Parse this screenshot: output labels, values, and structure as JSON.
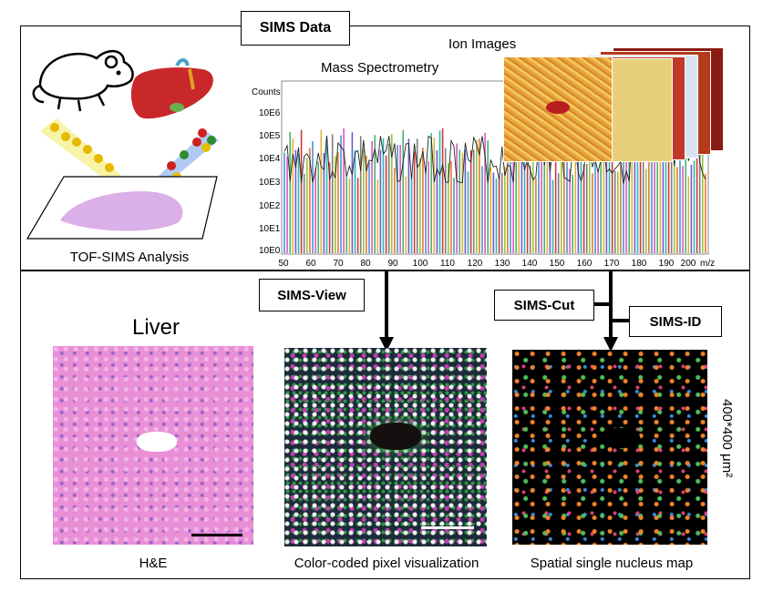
{
  "sections": {
    "top_label": "SIMS Data",
    "tof_caption": "TOF-SIMS Analysis",
    "ion_images_title": "Ion Images",
    "mass_spec_title": "Mass Spectrometry"
  },
  "spectrum": {
    "y_title": "Counts",
    "y_ticks": [
      "10E6",
      "10E5",
      "10E4",
      "10E3",
      "10E2",
      "10E1",
      "10E0"
    ],
    "x_ticks": [
      "50",
      "60",
      "70",
      "80",
      "90",
      "100",
      "110",
      "120",
      "130",
      "140",
      "150",
      "160",
      "170",
      "180",
      "190",
      "200"
    ],
    "x_unit": "m/z"
  },
  "pipeline": {
    "view_label": "SIMS-View",
    "cut_label": "SIMS-Cut",
    "id_label": "SIMS-ID"
  },
  "bottom": {
    "liver_title": "Liver",
    "he_caption": "H&E",
    "color_caption": "Color-coded pixel visualization",
    "nucleus_caption": "Spatial single nucleus map",
    "size_label": "400*400 μm²"
  },
  "colors": {
    "he_pink": "#e98fd6",
    "liver_red": "#c8282a",
    "frame": "#000000"
  }
}
